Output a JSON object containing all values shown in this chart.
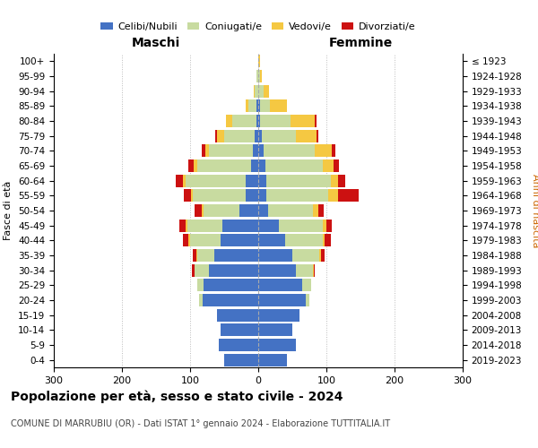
{
  "age_groups": [
    "0-4",
    "5-9",
    "10-14",
    "15-19",
    "20-24",
    "25-29",
    "30-34",
    "35-39",
    "40-44",
    "45-49",
    "50-54",
    "55-59",
    "60-64",
    "65-69",
    "70-74",
    "75-79",
    "80-84",
    "85-89",
    "90-94",
    "95-99",
    "100+"
  ],
  "birth_years": [
    "2019-2023",
    "2014-2018",
    "2009-2013",
    "2004-2008",
    "1999-2003",
    "1994-1998",
    "1989-1993",
    "1984-1988",
    "1979-1983",
    "1974-1978",
    "1969-1973",
    "1964-1968",
    "1959-1963",
    "1954-1958",
    "1949-1953",
    "1944-1948",
    "1939-1943",
    "1934-1938",
    "1929-1933",
    "1924-1928",
    "≤ 1923"
  ],
  "males": {
    "celibi": [
      50,
      58,
      55,
      60,
      82,
      80,
      72,
      65,
      55,
      52,
      28,
      18,
      18,
      10,
      8,
      5,
      3,
      2,
      0,
      0,
      0
    ],
    "coniugati": [
      0,
      0,
      0,
      0,
      5,
      10,
      22,
      25,
      45,
      52,
      52,
      78,
      88,
      80,
      65,
      45,
      35,
      12,
      5,
      2,
      0
    ],
    "vedovi": [
      0,
      0,
      0,
      0,
      0,
      0,
      0,
      1,
      2,
      2,
      3,
      3,
      5,
      5,
      5,
      10,
      10,
      5,
      2,
      0,
      0
    ],
    "divorziati": [
      0,
      0,
      0,
      0,
      0,
      0,
      3,
      5,
      8,
      10,
      10,
      10,
      10,
      8,
      5,
      3,
      0,
      0,
      0,
      0,
      0
    ]
  },
  "females": {
    "nubili": [
      42,
      55,
      50,
      60,
      70,
      65,
      55,
      50,
      40,
      30,
      15,
      12,
      12,
      10,
      8,
      5,
      3,
      2,
      0,
      0,
      0
    ],
    "coniugate": [
      0,
      0,
      0,
      0,
      5,
      12,
      25,
      40,
      55,
      65,
      65,
      90,
      95,
      85,
      75,
      50,
      45,
      15,
      8,
      2,
      0
    ],
    "vedove": [
      0,
      0,
      0,
      0,
      0,
      0,
      1,
      2,
      3,
      5,
      8,
      15,
      10,
      15,
      25,
      30,
      35,
      25,
      8,
      3,
      2
    ],
    "divorziate": [
      0,
      0,
      0,
      0,
      0,
      0,
      2,
      5,
      8,
      8,
      8,
      30,
      10,
      8,
      5,
      3,
      2,
      0,
      0,
      0,
      0
    ]
  },
  "colors": {
    "celibi": "#4472C4",
    "coniugati": "#c8dba0",
    "vedovi": "#f5c842",
    "divorziati": "#cc1111"
  },
  "xlim": 300,
  "title": "Popolazione per età, sesso e stato civile - 2024",
  "subtitle": "COMUNE DI MARRUBIU (OR) - Dati ISTAT 1° gennaio 2024 - Elaborazione TUTTITALIA.IT",
  "ylabel_left": "Fasce di età",
  "ylabel_right": "Anni di nascita",
  "xlabel_left": "Maschi",
  "xlabel_right": "Femmine",
  "legend_labels": [
    "Celibi/Nubili",
    "Coniugati/e",
    "Vedovi/e",
    "Divorziati/e"
  ],
  "background_color": "#ffffff",
  "grid_color": "#cccccc"
}
